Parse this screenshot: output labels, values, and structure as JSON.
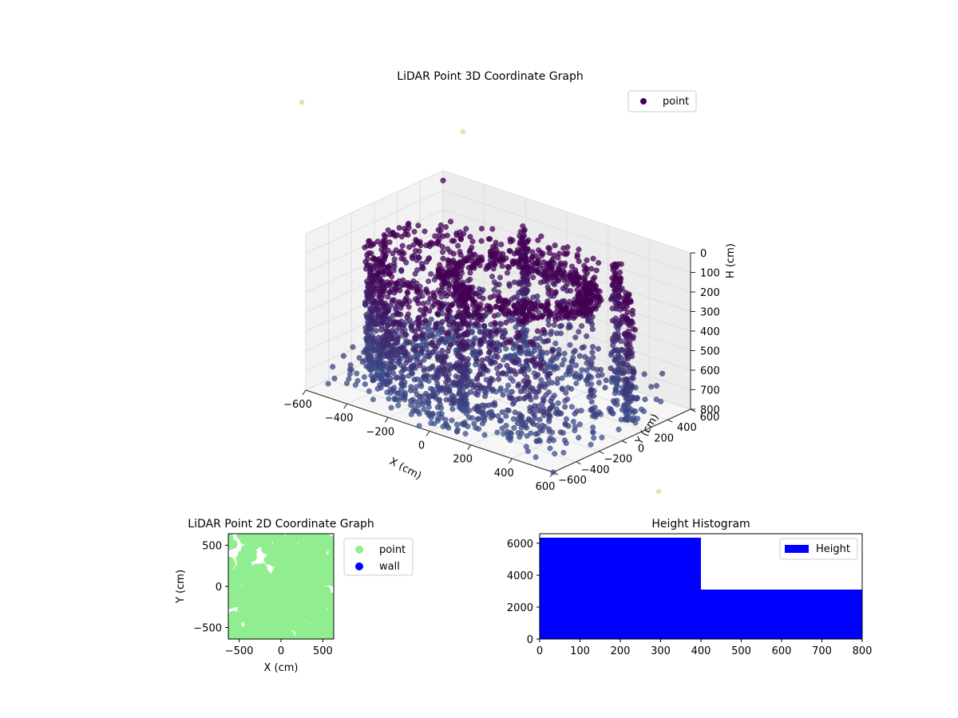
{
  "figure": {
    "background": "#ffffff"
  },
  "chart_data": [
    {
      "type": "scatter3d",
      "title": "LiDAR Point 3D Coordinate Graph",
      "xlabel": "X (cm)",
      "ylabel": "Y (cm)",
      "zlabel": "H (cm)",
      "xlim": [
        -600,
        600
      ],
      "ylim": [
        -600,
        600
      ],
      "zlim": [
        0,
        800
      ],
      "z_inverted": true,
      "x_ticks": [
        -600,
        -400,
        -200,
        0,
        200,
        400,
        600
      ],
      "y_ticks": [
        -600,
        -400,
        -200,
        0,
        200,
        400,
        600
      ],
      "z_ticks": [
        0,
        100,
        200,
        300,
        400,
        500,
        600,
        700,
        800
      ],
      "colormap": "viridis",
      "color_low": "#440154",
      "color_high": "#3b528b",
      "outlier_color": "#c7e9a0",
      "legend": {
        "label": "point",
        "color": "#440154",
        "position": "upper right"
      },
      "grid": true,
      "shape": "room walls (two curved walls with vertical columns) plus scattered outliers",
      "series": [
        {
          "name": "point",
          "sample_points_xyh": [
            [
              -560,
              -150,
              250
            ],
            [
              -560,
              0,
              300
            ],
            [
              -540,
              150,
              280
            ],
            [
              -500,
              300,
              260
            ],
            [
              -420,
              430,
              240
            ],
            [
              -300,
              520,
              260
            ],
            [
              -150,
              570,
              250
            ],
            [
              0,
              580,
              270
            ],
            [
              150,
              560,
              280
            ],
            [
              300,
              500,
              300
            ],
            [
              430,
              400,
              320
            ],
            [
              520,
              260,
              330
            ],
            [
              570,
              100,
              350
            ],
            [
              580,
              -60,
              420
            ],
            [
              560,
              -200,
              500
            ],
            [
              -560,
              -150,
              700
            ],
            [
              0,
              580,
              720
            ],
            [
              300,
              500,
              760
            ],
            [
              560,
              -200,
              780
            ],
            [
              -200,
              -200,
              780
            ],
            [
              100,
              -300,
              790
            ],
            [
              200,
              100,
              200
            ],
            [
              250,
              50,
              180
            ],
            [
              -600,
              600,
              50
            ],
            [
              600,
              -600,
              800
            ],
            [
              -50,
              -600,
              790
            ]
          ]
        }
      ]
    },
    {
      "type": "scatter",
      "title": "LiDAR Point 2D Coordinate Graph",
      "xlabel": "X (cm)",
      "ylabel": "Y (cm)",
      "xlim": [
        -630,
        630
      ],
      "ylim": [
        -640,
        640
      ],
      "x_ticks": [
        -500,
        0,
        500
      ],
      "y_ticks": [
        -500,
        0,
        500
      ],
      "legend_position": "outside upper right",
      "series": [
        {
          "name": "point",
          "color": "#90ee90",
          "coverage": "nearly the full area, with small white gaps near the top-left"
        },
        {
          "name": "wall",
          "color": "#0000ff",
          "values": []
        }
      ]
    },
    {
      "type": "histogram",
      "title": "Height Histogram",
      "xlim": [
        0,
        800
      ],
      "ylim": [
        0,
        6600
      ],
      "x_ticks": [
        0,
        100,
        200,
        300,
        400,
        500,
        600,
        700,
        800
      ],
      "y_ticks": [
        0,
        2000,
        4000,
        6000
      ],
      "legend_position": "upper right",
      "series": [
        {
          "name": "Height",
          "color": "#0000ff"
        }
      ],
      "bins": [
        {
          "x0": 0,
          "x1": 400,
          "count": 6350
        },
        {
          "x0": 400,
          "x1": 800,
          "count": 3100
        }
      ]
    }
  ]
}
